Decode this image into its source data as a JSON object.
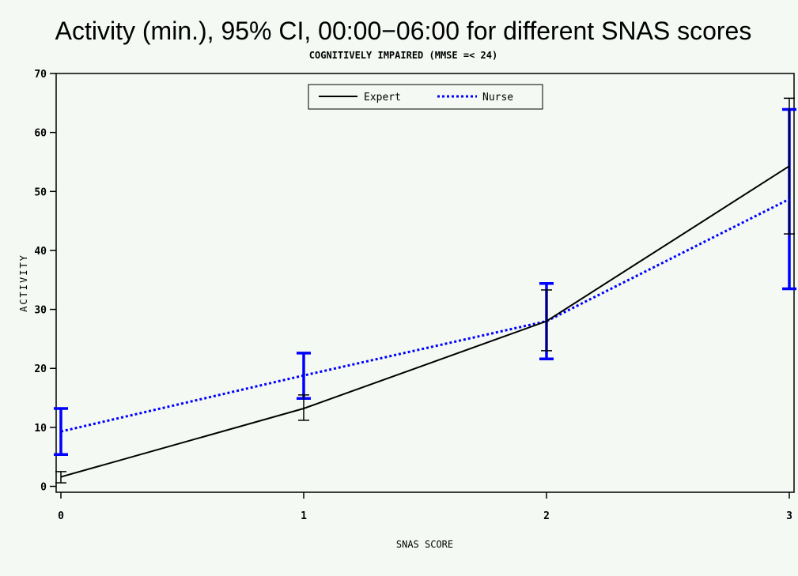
{
  "chart_data": {
    "type": "line",
    "title": "Activity (min.), 95% CI, 00:00−06:00 for different SNAS scores",
    "subtitle": "COGNITIVELY IMPAIRED (MMSE =< 24)",
    "xlabel": "SNAS SCORE",
    "ylabel": "ACTIVITY",
    "x": [
      0,
      1,
      2,
      3
    ],
    "x_ticks": [
      "0",
      "1",
      "2",
      "3"
    ],
    "y_ticks": [
      "0",
      "10",
      "20",
      "30",
      "40",
      "50",
      "60",
      "70"
    ],
    "xlim": [
      0,
      3
    ],
    "ylim": [
      -1,
      70
    ],
    "legend_position": "top-center",
    "series": [
      {
        "name": "Expert",
        "color": "#000000",
        "style": "solid",
        "values": [
          1.6,
          13.2,
          28.0,
          54.3
        ],
        "ci_low": [
          0.6,
          11.2,
          23.0,
          42.8
        ],
        "ci_high": [
          2.5,
          15.5,
          33.3,
          65.8
        ]
      },
      {
        "name": "Nurse",
        "color": "#0000ff",
        "style": "dotted",
        "values": [
          9.3,
          18.8,
          28.0,
          48.7
        ],
        "ci_low": [
          5.4,
          14.9,
          21.6,
          33.5
        ],
        "ci_high": [
          13.2,
          22.6,
          34.4,
          63.9
        ]
      }
    ]
  }
}
